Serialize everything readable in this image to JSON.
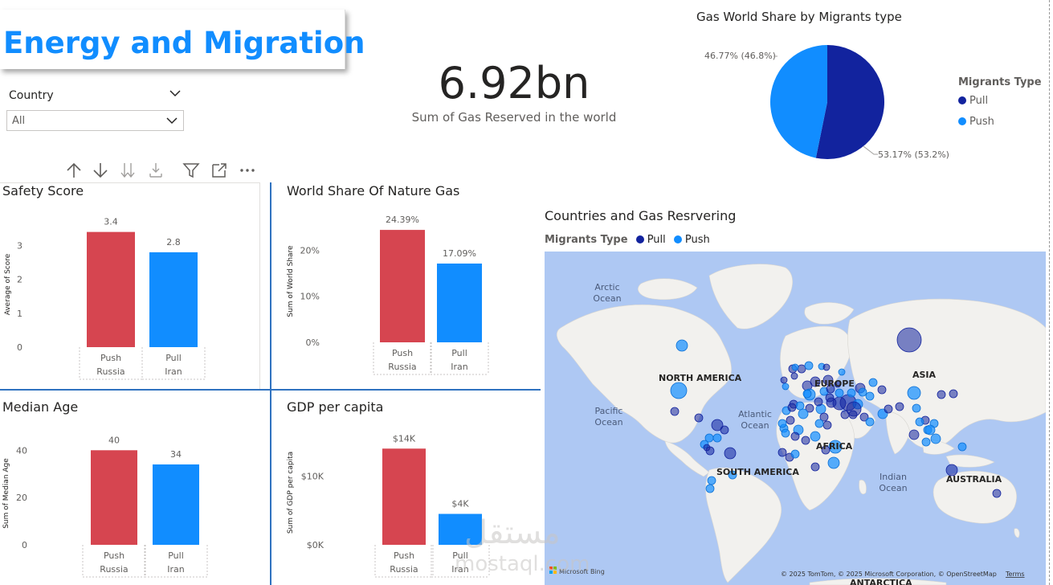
{
  "header": {
    "title": "Energy and Migration"
  },
  "slicer": {
    "label": "Country",
    "value": "All"
  },
  "kpi": {
    "value": "6.92bn",
    "label": "Sum of Gas Reserved in the world"
  },
  "toolbar": {
    "icons": [
      "arrow-up-icon",
      "arrow-down-icon",
      "double-arrow-down-icon",
      "expand-hierarchy-icon",
      "filter-icon",
      "focus-mode-icon",
      "more-options-icon"
    ]
  },
  "colors": {
    "accent": "#118DFF",
    "pull": "#12239E",
    "push": "#118DFF",
    "push_bar": "#118DFF",
    "red_bar": "#D64550",
    "panel_border": "#2f72c0"
  },
  "map": {
    "title": "Countries and Gas Resrvering",
    "legend_title": "Migrants Type",
    "legend_items": [
      {
        "label": "Pull",
        "color": "#12239E"
      },
      {
        "label": "Push",
        "color": "#118DFF"
      }
    ],
    "labels": {
      "arctic": "Arctic\nOcean",
      "pacific": "Pacific\nOcean",
      "atlantic": "Atlantic\nOcean",
      "indian": "Indian\nOcean",
      "north_america": "NORTH AMERICA",
      "south_america": "SOUTH AMERICA",
      "europe": "EUROPE",
      "africa": "AFRICA",
      "asia": "ASIA",
      "australia": "AUSTRALIA",
      "antarctica": "ANTARCTICA"
    },
    "attribution": "© 2025 TomTom, © 2025 Microsoft Corporation, © OpenStreetMap",
    "terms": "Terms",
    "bing": "Microsoft Bing"
  },
  "pie": {
    "title": "Gas World Share  by Migrants type",
    "legend_title": "Migrants Type",
    "legend": [
      {
        "label": "Pull",
        "color": "#12239E"
      },
      {
        "label": "Push",
        "color": "#118DFF"
      }
    ],
    "label_push": "46.77% (46.8%)",
    "label_pull": "53.17% (53.2%)"
  },
  "watermark": {
    "arabic": "مستقل",
    "latin": "mostaql.com"
  },
  "chart_data": [
    {
      "type": "pie",
      "title": "Gas World Share  by Migrants type",
      "categories": [
        "Pull",
        "Push"
      ],
      "values": [
        53.17,
        46.77
      ],
      "legend": "right"
    },
    {
      "type": "bar",
      "title": "Safety Score",
      "categories": [
        "Push",
        "Pull"
      ],
      "subcategories": [
        "Russia",
        "Iran"
      ],
      "values": [
        3.4,
        2.8
      ],
      "data_labels": [
        "3.4",
        "2.8"
      ],
      "xlabel": "",
      "ylabel": "Average of Score",
      "ylim": [
        0,
        3.7
      ],
      "yticks": [
        "0",
        "1",
        "2",
        "3"
      ],
      "ytick_values": [
        0,
        1,
        2,
        3
      ]
    },
    {
      "type": "bar",
      "title": "World Share Of Nature Gas",
      "categories": [
        "Push",
        "Pull"
      ],
      "subcategories": [
        "Russia",
        "Iran"
      ],
      "values": [
        24.39,
        17.09
      ],
      "data_labels": [
        "24.39%",
        "17.09%"
      ],
      "xlabel": "",
      "ylabel": "Sum of World Share",
      "ylim": [
        0,
        26.5
      ],
      "yticks": [
        "0%",
        "10%",
        "20%"
      ],
      "ytick_values": [
        0,
        10,
        20
      ]
    },
    {
      "type": "bar",
      "title": "Median Age",
      "categories": [
        "Push",
        "Pull"
      ],
      "subcategories": [
        "Russia",
        "Iran"
      ],
      "values": [
        40,
        34
      ],
      "data_labels": [
        "40",
        "34"
      ],
      "xlabel": "",
      "ylabel": "Sum of Median Age",
      "ylim": [
        0,
        43.5
      ],
      "yticks": [
        "0",
        "20",
        "40"
      ],
      "ytick_values": [
        0,
        20,
        40
      ]
    },
    {
      "type": "bar",
      "title": "GDP per capita",
      "categories": [
        "Push",
        "Pull"
      ],
      "subcategories": [
        "Russia",
        "Iran"
      ],
      "values": [
        14000,
        4500
      ],
      "data_labels": [
        "$14K",
        "$4K"
      ],
      "xlabel": "",
      "ylabel": "Sum of GDP per capita",
      "ylim": [
        0,
        15200
      ],
      "yticks": [
        "$0K",
        "$10K"
      ],
      "ytick_values": [
        0,
        10000
      ]
    }
  ]
}
